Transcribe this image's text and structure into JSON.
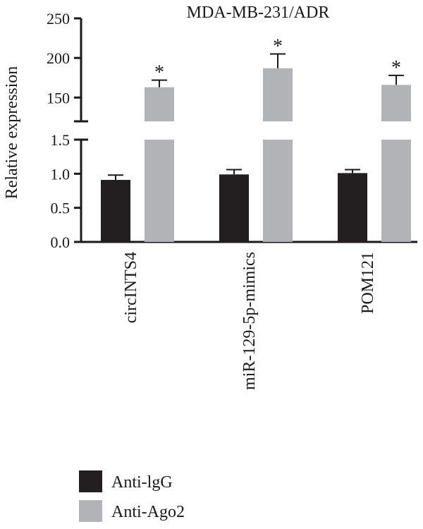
{
  "chart_data": {
    "type": "bar",
    "title": "MDA-MB-231/ADR",
    "ylabel": "Relative expression",
    "xlabel": "",
    "categories": [
      "circINTS4",
      "miR-129-5p-mimics",
      "POM121"
    ],
    "series": [
      {
        "name": "Anti-lgG",
        "color": "#231f20",
        "values": [
          0.91,
          0.99,
          1.01
        ],
        "errors": [
          0.07,
          0.07,
          0.05
        ]
      },
      {
        "name": "Anti-Ago2",
        "color": "#b1b3b6",
        "values": [
          163,
          187,
          166
        ],
        "errors": [
          9,
          18,
          12
        ]
      }
    ],
    "broken_axis": {
      "lower": {
        "range": [
          0.0,
          1.5
        ],
        "ticks": [
          "0.0",
          "0.5",
          "1.0",
          "1.5"
        ]
      },
      "upper": {
        "range": [
          120,
          250
        ],
        "ticks": [
          "150",
          "200",
          "250"
        ]
      }
    },
    "annotations": [
      "*",
      "*",
      "*"
    ],
    "legend_position": "bottom-left",
    "grid": false
  }
}
